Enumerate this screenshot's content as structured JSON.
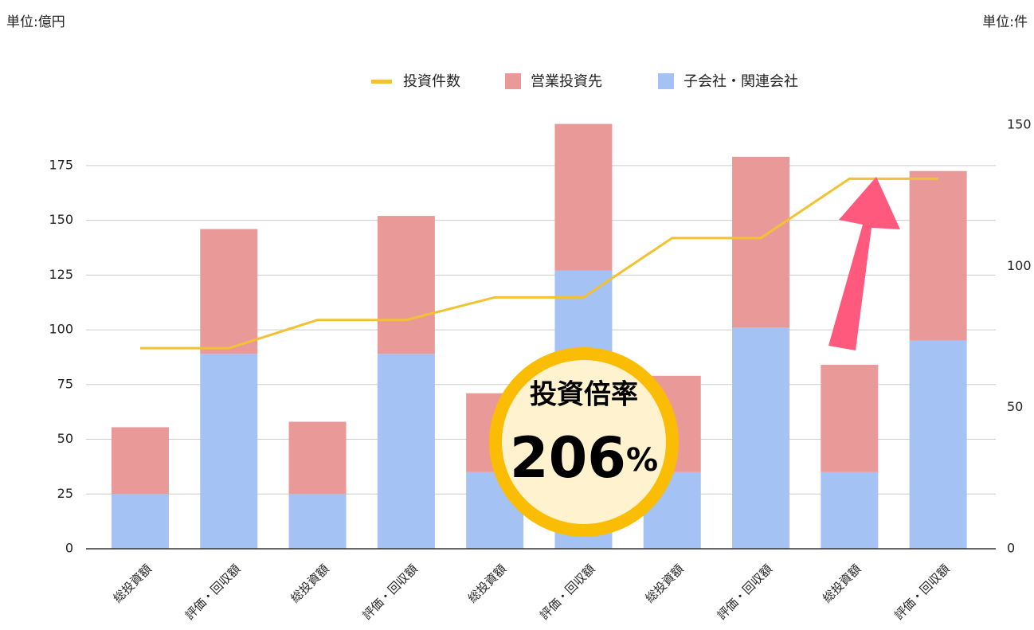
{
  "chart_data": {
    "type": "bar",
    "left_unit": "単位:億円",
    "right_unit": "単位:件",
    "categories": [
      "総投資額",
      "評価・回収額",
      "総投資額",
      "評価・回収額",
      "総投資額",
      "評価・回収額",
      "総投資額",
      "評価・回収額",
      "総投資額",
      "評価・回収額"
    ],
    "series": [
      {
        "name": "投資件数",
        "type": "line",
        "axis": "y2",
        "color": "#f1c232",
        "values": [
          71,
          71,
          81,
          81,
          89,
          89,
          110,
          110,
          131,
          131
        ]
      },
      {
        "name": "営業投資先",
        "type": "bar",
        "color": "#ea9999",
        "values": [
          30.5,
          57,
          33,
          63,
          36,
          67,
          44,
          78,
          49,
          77.5
        ]
      },
      {
        "name": "子会社・関連会社",
        "type": "bar",
        "color": "#a4c2f4",
        "values": [
          25,
          89,
          25,
          89,
          35,
          127,
          35,
          101,
          35,
          95
        ]
      }
    ],
    "ylim": [
      0,
      193.5
    ],
    "yticks": [
      0,
      25,
      50,
      75,
      100,
      125,
      150,
      175
    ],
    "y2lim": [
      0,
      150
    ],
    "y2ticks": [
      0,
      50,
      100,
      150
    ],
    "grid": true,
    "legend": "top",
    "annotation": {
      "title": "投資倍率",
      "value": "206",
      "unit": "%"
    }
  }
}
